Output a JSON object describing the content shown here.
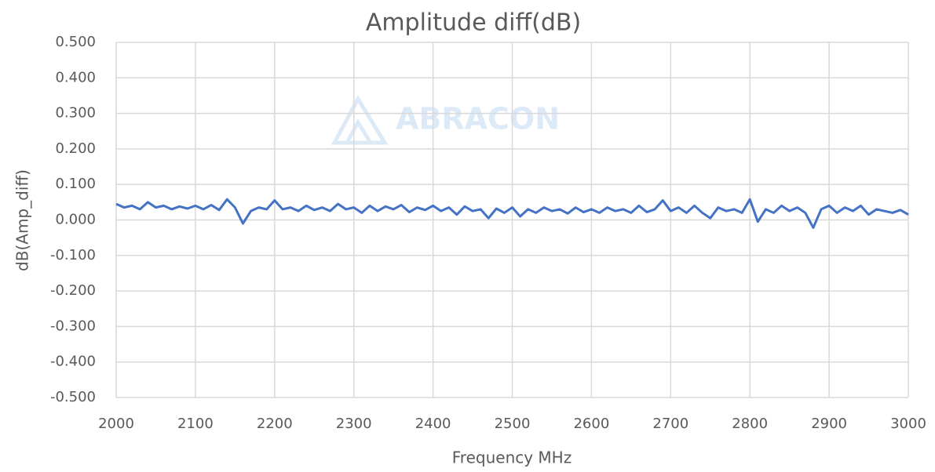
{
  "chart_data": {
    "type": "line",
    "title": "Amplitude diff(dB)",
    "xlabel": "Frequency MHz",
    "ylabel": "dB(Amp_diff)",
    "watermark": "ABRACON",
    "x": [
      2000,
      2010,
      2020,
      2030,
      2040,
      2050,
      2060,
      2070,
      2080,
      2090,
      2100,
      2110,
      2120,
      2130,
      2140,
      2150,
      2160,
      2170,
      2180,
      2190,
      2200,
      2210,
      2220,
      2230,
      2240,
      2250,
      2260,
      2270,
      2280,
      2290,
      2300,
      2310,
      2320,
      2330,
      2340,
      2350,
      2360,
      2370,
      2380,
      2390,
      2400,
      2410,
      2420,
      2430,
      2440,
      2450,
      2460,
      2470,
      2480,
      2490,
      2500,
      2510,
      2520,
      2530,
      2540,
      2550,
      2560,
      2570,
      2580,
      2590,
      2600,
      2610,
      2620,
      2630,
      2640,
      2650,
      2660,
      2670,
      2680,
      2690,
      2700,
      2710,
      2720,
      2730,
      2740,
      2750,
      2760,
      2770,
      2780,
      2790,
      2800,
      2810,
      2820,
      2830,
      2840,
      2850,
      2860,
      2870,
      2880,
      2890,
      2900,
      2910,
      2920,
      2930,
      2940,
      2950,
      2960,
      2970,
      2980,
      2990,
      3000
    ],
    "series": [
      {
        "name": "Amplitude diff",
        "color": "#4472c4",
        "values": [
          0.045,
          0.035,
          0.04,
          0.03,
          0.05,
          0.035,
          0.04,
          0.03,
          0.038,
          0.032,
          0.04,
          0.03,
          0.042,
          0.028,
          0.058,
          0.035,
          -0.01,
          0.025,
          0.035,
          0.03,
          0.055,
          0.03,
          0.035,
          0.025,
          0.04,
          0.028,
          0.035,
          0.025,
          0.045,
          0.03,
          0.035,
          0.02,
          0.04,
          0.025,
          0.038,
          0.03,
          0.042,
          0.022,
          0.035,
          0.028,
          0.04,
          0.025,
          0.035,
          0.015,
          0.038,
          0.025,
          0.03,
          0.005,
          0.032,
          0.02,
          0.035,
          0.01,
          0.03,
          0.02,
          0.035,
          0.025,
          0.03,
          0.018,
          0.035,
          0.022,
          0.03,
          0.02,
          0.035,
          0.025,
          0.03,
          0.02,
          0.04,
          0.022,
          0.03,
          0.055,
          0.025,
          0.035,
          0.02,
          0.04,
          0.02,
          0.005,
          0.035,
          0.025,
          0.03,
          0.02,
          0.058,
          -0.005,
          0.03,
          0.02,
          0.04,
          0.025,
          0.035,
          0.02,
          -0.022,
          0.03,
          0.04,
          0.02,
          0.035,
          0.025,
          0.04,
          0.015,
          0.03,
          0.025,
          0.02,
          0.028,
          0.015
        ]
      }
    ],
    "xlim": [
      2000,
      3000
    ],
    "xticks": [
      2000,
      2100,
      2200,
      2300,
      2400,
      2500,
      2600,
      2700,
      2800,
      2900,
      3000
    ],
    "ylim": [
      -0.5,
      0.5
    ],
    "yticks": [
      {
        "value": -0.5,
        "label": "-0.500"
      },
      {
        "value": -0.4,
        "label": "-0.400"
      },
      {
        "value": -0.3,
        "label": "-0.300"
      },
      {
        "value": -0.2,
        "label": "-0.200"
      },
      {
        "value": -0.1,
        "label": "-0.100"
      },
      {
        "value": 0,
        "label": "0.000"
      },
      {
        "value": 0.1,
        "label": "0.100"
      },
      {
        "value": 0.2,
        "label": "0.200"
      },
      {
        "value": 0.3,
        "label": "0.300"
      },
      {
        "value": 0.4,
        "label": "0.400"
      },
      {
        "value": 0.5,
        "label": "0.500"
      }
    ],
    "grid": true
  }
}
